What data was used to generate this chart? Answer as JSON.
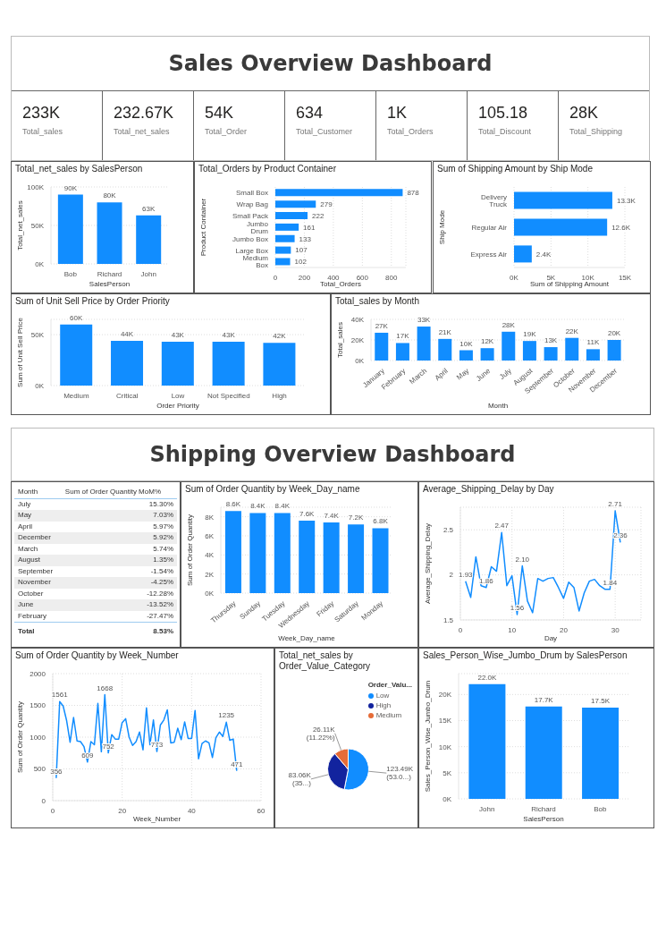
{
  "chart_data": [
    {
      "type": "other",
      "title": "Sales Overview Dashboard",
      "annotations": [
        "233K",
        "Total_sales",
        "232.67K",
        "Total_net_sales",
        "54K",
        "Total_Order",
        "634",
        "Total_Customer",
        "1K",
        "Total_Orders",
        "105.18",
        "Total_Discount",
        "28K",
        "Total_Shipping"
      ]
    },
    {
      "type": "bar",
      "title": "Total_net_sales by SalesPerson",
      "categories": [
        "Bob",
        "Richard",
        "John"
      ],
      "values": [
        90000,
        80000,
        63000
      ],
      "value_labels": [
        "90K",
        "80K",
        "63K"
      ],
      "color": "#118dff",
      "xlabel": "SalesPerson",
      "ylabel": "Total_net_sales",
      "ylim": [
        0,
        100000
      ],
      "yticks": [
        {
          "value": 0,
          "label": "0K"
        },
        {
          "value": 50000,
          "label": "50K"
        },
        {
          "value": 100000,
          "label": "100K"
        }
      ],
      "grid": "y"
    },
    {
      "type": "bar",
      "orientation": "horizontal",
      "title": "Total_Orders by Product Container",
      "categories": [
        "Small Box",
        "Wrap Bag",
        "Small Pack",
        "Jumbo Drum",
        "Jumbo Box",
        "Large Box",
        "Medium Box"
      ],
      "values": [
        878,
        279,
        222,
        161,
        133,
        107,
        102
      ],
      "data_labels": true,
      "color": "#118dff",
      "xlabel": "Total_Orders",
      "ylabel": "Product Container",
      "xlim": [
        0,
        900
      ],
      "xticks": [
        0,
        200,
        400,
        600,
        800
      ],
      "grid": "x"
    },
    {
      "type": "bar",
      "orientation": "horizontal",
      "title": "Sum of Shipping Amount by Ship Mode",
      "categories": [
        "Delivery Truck",
        "Regular Air",
        "Express Air"
      ],
      "values": [
        13300,
        12600,
        2400
      ],
      "value_labels": [
        "13.3K",
        "12.6K",
        "2.4K"
      ],
      "color": "#118dff",
      "xlabel": "Sum of Shipping Amount",
      "ylabel": "Ship Mode",
      "xlim": [
        0,
        15000
      ],
      "xticks": [
        {
          "value": 0,
          "label": "0K"
        },
        {
          "value": 5000,
          "label": "5K"
        },
        {
          "value": 10000,
          "label": "10K"
        },
        {
          "value": 15000,
          "label": "15K"
        }
      ],
      "grid": "x"
    },
    {
      "type": "bar",
      "title": "Sum of Unit Sell Price by Order Priority",
      "categories": [
        "Medium",
        "Critical",
        "Low",
        "Not Specified",
        "High"
      ],
      "values": [
        60000,
        44000,
        43000,
        43000,
        42000
      ],
      "value_labels": [
        "60K",
        "44K",
        "43K",
        "43K",
        "42K"
      ],
      "color": "#118dff",
      "xlabel": "Order Priority",
      "ylabel": "Sum of Unit Sell Price",
      "ylim": [
        0,
        65000
      ],
      "yticks": [
        {
          "value": 0,
          "label": "0K"
        },
        {
          "value": 50000,
          "label": "50K"
        }
      ],
      "grid": "y"
    },
    {
      "type": "bar",
      "title": "Total_sales by Month",
      "categories": [
        "January",
        "February",
        "March",
        "April",
        "May",
        "June",
        "July",
        "August",
        "September",
        "October",
        "November",
        "December"
      ],
      "values": [
        27000,
        17000,
        33000,
        21000,
        10000,
        12000,
        28000,
        19000,
        13000,
        22000,
        11000,
        20000
      ],
      "value_labels": [
        "27K",
        "17K",
        "33K",
        "21K",
        "10K",
        "12K",
        "28K",
        "19K",
        "13K",
        "22K",
        "11K",
        "20K"
      ],
      "color": "#118dff",
      "xlabel": "Month",
      "ylabel": "Total_sales",
      "ylim": [
        0,
        40000
      ],
      "yticks": [
        {
          "value": 0,
          "label": "0K"
        },
        {
          "value": 20000,
          "label": "20K"
        },
        {
          "value": 40000,
          "label": "40K"
        }
      ],
      "grid": "y"
    },
    {
      "type": "other",
      "title": "Shipping Overview Dashboard"
    },
    {
      "type": "other",
      "categories": [
        "July",
        "May",
        "April",
        "December",
        "March",
        "August",
        "September",
        "November",
        "October",
        "June",
        "February"
      ],
      "value_labels": [
        "15.30%",
        "7.03%",
        "5.97%",
        "5.92%",
        "5.74%",
        "1.35%",
        "-1.54%",
        "-4.25%",
        "-12.28%",
        "-13.52%",
        "-27.47%"
      ],
      "annotations": [
        "Month",
        "Sum of Order Quantity MoM%",
        "Total",
        "8.53%"
      ]
    },
    {
      "type": "bar",
      "title": "Sum of Order Quantity by Week_Day_name",
      "categories": [
        "Thursday",
        "Sunday",
        "Tuesday",
        "Wednesday",
        "Friday",
        "Saturday",
        "Monday"
      ],
      "values": [
        8600,
        8400,
        8400,
        7600,
        7400,
        7200,
        6800
      ],
      "value_labels": [
        "8.6K",
        "8.4K",
        "8.4K",
        "7.6K",
        "7.4K",
        "7.2K",
        "6.8K"
      ],
      "color": "#118dff",
      "xlabel": "Week_Day_name",
      "ylabel": "Sum of Order Quantity",
      "ylim": [
        0,
        9000
      ],
      "yticks": [
        {
          "value": 0,
          "label": "0K"
        },
        {
          "value": 2000,
          "label": "2K"
        },
        {
          "value": 4000,
          "label": "4K"
        },
        {
          "value": 6000,
          "label": "6K"
        },
        {
          "value": 8000,
          "label": "8K"
        }
      ],
      "grid": "y"
    },
    {
      "type": "line",
      "title": "Average_Shipping_Delay by Day",
      "x": [
        1,
        2,
        3,
        4,
        5,
        6,
        7,
        8,
        9,
        10,
        11,
        12,
        13,
        14,
        15,
        16,
        17,
        18,
        19,
        20,
        21,
        22,
        23,
        24,
        25,
        26,
        27,
        28,
        29,
        30,
        31
      ],
      "values": [
        1.93,
        1.75,
        2.2,
        1.88,
        1.86,
        2.09,
        2.04,
        2.47,
        1.88,
        1.99,
        1.56,
        2.1,
        1.71,
        1.58,
        1.96,
        1.93,
        1.96,
        1.97,
        1.86,
        1.74,
        1.92,
        1.86,
        1.6,
        1.8,
        1.93,
        1.95,
        1.88,
        1.84,
        1.84,
        2.71,
        2.36
      ],
      "value_labels": [
        "1.93",
        null,
        null,
        null,
        "1.86",
        null,
        null,
        "2.47",
        null,
        null,
        "1.56",
        "2.10",
        null,
        null,
        null,
        null,
        null,
        null,
        null,
        null,
        null,
        null,
        null,
        null,
        null,
        null,
        null,
        null,
        "1.84",
        "2.71",
        "2.36"
      ],
      "color": "#118dff",
      "marker": "none",
      "xlabel": "Day",
      "ylabel": "Average_Shipping_Delay",
      "xlim": [
        0,
        35
      ],
      "xticks": [
        0,
        10,
        20,
        30
      ],
      "ylim": [
        1.5,
        2.75
      ],
      "yticks": [
        1.5,
        2.0,
        2.5
      ],
      "grid": true
    },
    {
      "type": "line",
      "title": "Sum of Order Quantity by Week_Number",
      "x": [
        1,
        2,
        3,
        4,
        5,
        6,
        7,
        8,
        9,
        10,
        11,
        12,
        13,
        14,
        15,
        16,
        17,
        18,
        19,
        20,
        21,
        22,
        23,
        24,
        25,
        26,
        27,
        28,
        29,
        30,
        31,
        32,
        33,
        34,
        35,
        36,
        37,
        38,
        39,
        40,
        41,
        42,
        43,
        44,
        45,
        46,
        47,
        48,
        49,
        50,
        51,
        52,
        53
      ],
      "values": [
        356,
        1561,
        1490,
        1260,
        920,
        1310,
        940,
        930,
        850,
        609,
        930,
        880,
        1530,
        770,
        1668,
        752,
        1040,
        970,
        970,
        1230,
        1290,
        1000,
        870,
        930,
        1080,
        800,
        1460,
        880,
        1270,
        773,
        1190,
        1270,
        1430,
        910,
        920,
        1140,
        960,
        1240,
        980,
        980,
        1420,
        660,
        900,
        940,
        910,
        680,
        990,
        1080,
        1010,
        1235,
        950,
        970,
        471
      ],
      "value_labels": [
        "356",
        "1561",
        null,
        null,
        null,
        null,
        null,
        null,
        null,
        "609",
        null,
        null,
        null,
        null,
        "1668",
        "752",
        null,
        null,
        null,
        null,
        null,
        null,
        null,
        null,
        null,
        null,
        null,
        null,
        null,
        "773",
        null,
        null,
        null,
        null,
        null,
        null,
        null,
        null,
        null,
        null,
        null,
        null,
        null,
        null,
        null,
        null,
        null,
        null,
        null,
        "1235",
        null,
        null,
        "471"
      ],
      "color": "#118dff",
      "marker": "none",
      "xlabel": "Week_Number",
      "ylabel": "Sum of Order Quantity",
      "xlim": [
        0,
        60
      ],
      "xticks": [
        0,
        20,
        40,
        60
      ],
      "ylim": [
        0,
        2000
      ],
      "yticks": [
        0,
        500,
        1000,
        1500,
        2000
      ],
      "grid": true
    },
    {
      "type": "pie",
      "title": "Total_net_sales by Order_Value_Category",
      "categories": [
        "Low",
        "High",
        "Medium"
      ],
      "values": [
        123490,
        83060,
        26110
      ],
      "value_labels": [
        "123.49K (53.0...)",
        "83.06K (35...)",
        "26.11K (11.22%)"
      ],
      "colors": [
        "#118dff",
        "#12239e",
        "#e66c37"
      ],
      "legend": "right",
      "legend_title": "Order_Valu..."
    },
    {
      "type": "bar",
      "title": "Sales_Person_Wise_Jumbo_Drum by SalesPerson",
      "categories": [
        "John",
        "Richard",
        "Bob"
      ],
      "values": [
        22000,
        17700,
        17500
      ],
      "value_labels": [
        "22.0K",
        "17.7K",
        "17.5K"
      ],
      "color": "#118dff",
      "xlabel": "SalesPerson",
      "ylabel": "Sales_Person_Wise_Jumbo_Drum",
      "ylim": [
        0,
        24000
      ],
      "yticks": [
        {
          "value": 0,
          "label": "0K"
        },
        {
          "value": 5000,
          "label": "5K"
        },
        {
          "value": 10000,
          "label": "10K"
        },
        {
          "value": 15000,
          "label": "15K"
        },
        {
          "value": 20000,
          "label": "20K"
        }
      ],
      "grid": "y"
    }
  ]
}
